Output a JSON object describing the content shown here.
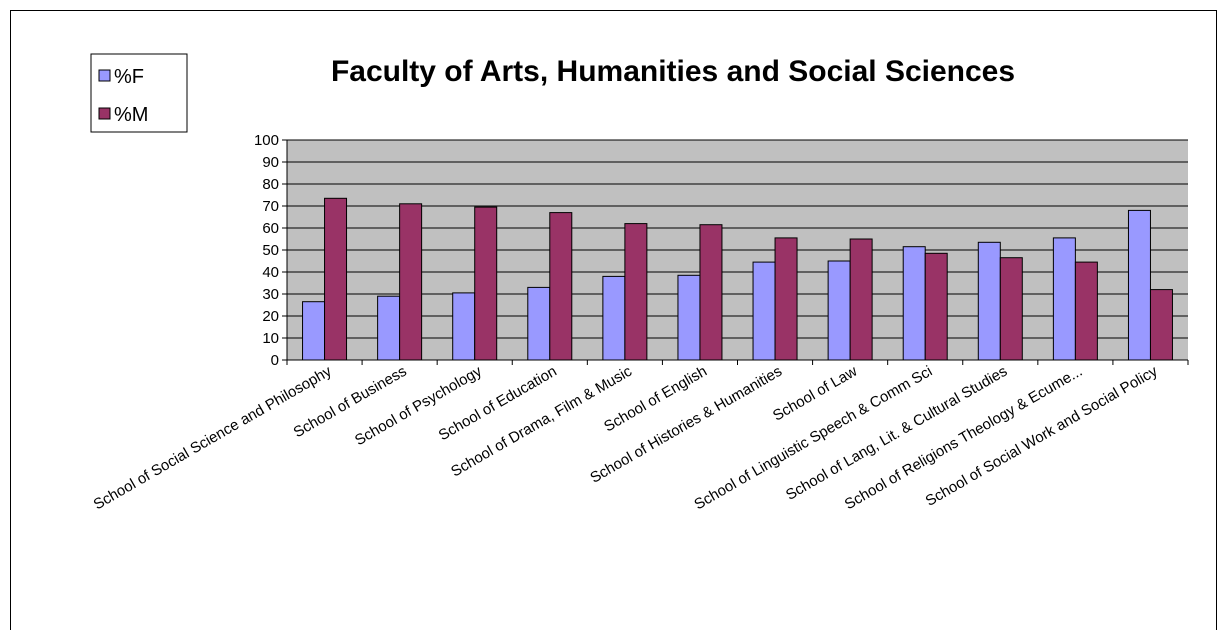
{
  "chart_data": {
    "type": "bar",
    "title": "Faculty of Arts, Humanities and Social Sciences",
    "xlabel": "",
    "ylabel": "",
    "ylim": [
      0,
      100
    ],
    "y_ticks": [
      "0",
      "10",
      "20",
      "30",
      "40",
      "50",
      "60",
      "70",
      "80",
      "90",
      "100"
    ],
    "grid": true,
    "legend_position": "top-left",
    "categories": [
      "School of Social Science and Philosophy",
      "School of Business",
      "School of Psychology",
      "School of Education",
      "School of Drama, Film & Music",
      "School of English",
      "School of Histories &  Humanities",
      "School of Law",
      "School of Linguistic Speech & Comm Sci",
      "School of Lang, Lit. & Cultural Studies",
      "School of Religions Theology & Ecume...",
      "School of Social Work and Social Policy"
    ],
    "series": [
      {
        "name": "%F",
        "color": "#9999ff",
        "values": [
          26.5,
          29,
          30.5,
          33,
          38,
          38.5,
          44.5,
          45,
          51.5,
          53.5,
          55.5,
          68
        ]
      },
      {
        "name": "%M",
        "color": "#993366",
        "values": [
          73.5,
          71,
          69.5,
          67,
          62,
          61.5,
          55.5,
          55,
          48.5,
          46.5,
          44.5,
          32
        ]
      }
    ],
    "plot_background": "#c0c0c0"
  }
}
